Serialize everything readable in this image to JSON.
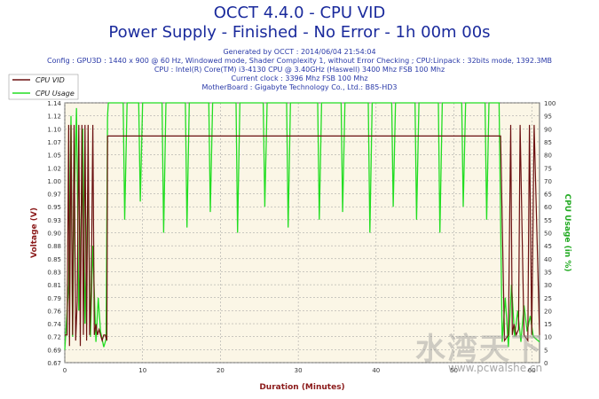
{
  "header": {
    "title": "OCCT 4.4.0 - CPU VID",
    "subtitle": "Power Supply - Finished - No Error - 1h 00m 00s"
  },
  "info": {
    "generated": "Generated by OCCT : 2014/06/04 21:54:04",
    "config": "Config : GPU3D : 1440 x 900 @ 60 Hz, Windowed mode, Shader Complexity 1, without Error Checking ; CPU:Linpack : 32bits mode, 1392.3MB",
    "cpu": "CPU : Intel(R) Core(TM) i3-4130 CPU @ 3.40GHz (Haswell) 3400 Mhz FSB 100 Mhz",
    "clock": "Current clock : 3396 Mhz FSB 100 Mhz",
    "motherboard": "MotherBoard : Gigabyte Technology Co., Ltd.: B85-HD3"
  },
  "colors": {
    "vid": "#6b1010",
    "usage": "#22dd22",
    "plot_bg": "#fbf6e6",
    "grid": "#999999",
    "axis_text": "#8b1a1a",
    "usage_label": "#22aa22",
    "xlabel": "#8b1a1a"
  },
  "watermark": {
    "text": "水湾天下",
    "url": "www.pcwalshe.cn"
  },
  "chart_data": {
    "type": "line",
    "xlabel": "Duration (Minutes)",
    "ylabel": "Voltage (V)",
    "y2label": "CPU Usage (in %)",
    "xlim": [
      0,
      61
    ],
    "ylim": [
      0.67,
      1.14
    ],
    "y2lim": [
      0,
      100
    ],
    "xticks": [
      0,
      10,
      20,
      30,
      40,
      50,
      60
    ],
    "yticks": [
      "0.67",
      "0.69",
      "0.72",
      "0.74",
      "0.76",
      "0.79",
      "0.81",
      "0.83",
      "0.85",
      "0.88",
      "0.90",
      "0.93",
      "0.95",
      "0.97",
      "1.00",
      "1.02",
      "1.05",
      "1.07",
      "1.10",
      "1.12",
      "1.14"
    ],
    "y2ticks": [
      0,
      5,
      10,
      15,
      20,
      25,
      30,
      35,
      40,
      45,
      50,
      55,
      60,
      65,
      70,
      75,
      80,
      85,
      90,
      95,
      100
    ],
    "legend": [
      "CPU VID",
      "CPU Usage"
    ],
    "series": [
      {
        "name": "CPU VID",
        "axis": "left",
        "x": [
          0,
          0.3,
          0.5,
          0.6,
          0.8,
          1.0,
          1.2,
          1.4,
          1.6,
          1.8,
          2.0,
          2.2,
          2.4,
          2.6,
          2.8,
          3.0,
          3.2,
          3.4,
          3.6,
          3.8,
          4.0,
          4.2,
          4.4,
          4.6,
          4.8,
          5.0,
          5.2,
          5.4,
          5.5,
          6,
          8,
          10,
          12,
          15,
          20,
          22,
          25,
          30,
          33,
          35,
          40,
          45,
          50,
          52,
          55,
          56,
          56.5,
          57,
          57.3,
          57.5,
          57.7,
          58,
          58.3,
          58.5,
          59,
          59.5,
          59.7,
          60,
          60.3,
          61
        ],
        "y": [
          0.72,
          0.72,
          1.1,
          0.7,
          1.1,
          0.72,
          1.1,
          0.71,
          0.78,
          1.1,
          0.7,
          1.1,
          0.72,
          1.1,
          0.71,
          1.1,
          0.72,
          0.8,
          1.1,
          0.72,
          0.74,
          0.72,
          0.73,
          0.72,
          0.71,
          0.72,
          0.72,
          0.71,
          1.08,
          1.08,
          1.08,
          1.08,
          1.08,
          1.08,
          1.08,
          1.08,
          1.08,
          1.08,
          1.08,
          1.08,
          1.08,
          1.08,
          1.08,
          1.08,
          1.08,
          1.08,
          0.71,
          0.72,
          1.1,
          0.72,
          0.74,
          0.72,
          0.73,
          1.1,
          0.72,
          0.71,
          1.1,
          0.72,
          1.1,
          0.72
        ]
      },
      {
        "name": "CPU Usage",
        "axis": "right",
        "x": [
          0,
          0.5,
          0.8,
          1.0,
          1.2,
          1.5,
          1.8,
          2.0,
          2.3,
          2.6,
          3.0,
          3.3,
          3.6,
          4.0,
          4.3,
          4.6,
          5.0,
          5.3,
          5.5,
          5.6,
          7.5,
          7.7,
          8.0,
          9.5,
          9.7,
          10.0,
          12.5,
          12.7,
          13.0,
          15.5,
          15.7,
          16.0,
          18.5,
          18.7,
          19.0,
          22.0,
          22.2,
          22.5,
          25.5,
          25.7,
          26.0,
          28.5,
          28.7,
          29.0,
          32.5,
          32.7,
          33.0,
          35.5,
          35.7,
          36.0,
          39.0,
          39.2,
          39.5,
          42.0,
          42.2,
          42.5,
          45.0,
          45.2,
          45.5,
          48.0,
          48.2,
          48.5,
          51.0,
          51.2,
          51.5,
          54.0,
          54.2,
          54.5,
          55.8,
          56.2,
          56.6,
          57.0,
          57.4,
          57.8,
          58.2,
          58.6,
          59.0,
          59.4,
          59.8,
          60.2,
          61
        ],
        "y": [
          5,
          30,
          95,
          10,
          60,
          98,
          20,
          40,
          90,
          15,
          70,
          10,
          45,
          8,
          25,
          12,
          6,
          9,
          95,
          100,
          100,
          55,
          100,
          100,
          62,
          100,
          100,
          50,
          100,
          100,
          52,
          100,
          100,
          58,
          100,
          100,
          50,
          100,
          100,
          60,
          100,
          100,
          52,
          100,
          100,
          55,
          100,
          100,
          58,
          100,
          100,
          50,
          100,
          100,
          60,
          100,
          100,
          55,
          100,
          100,
          50,
          100,
          100,
          60,
          100,
          100,
          55,
          100,
          100,
          8,
          25,
          6,
          30,
          10,
          20,
          8,
          22,
          12,
          18,
          10,
          8
        ]
      }
    ]
  }
}
